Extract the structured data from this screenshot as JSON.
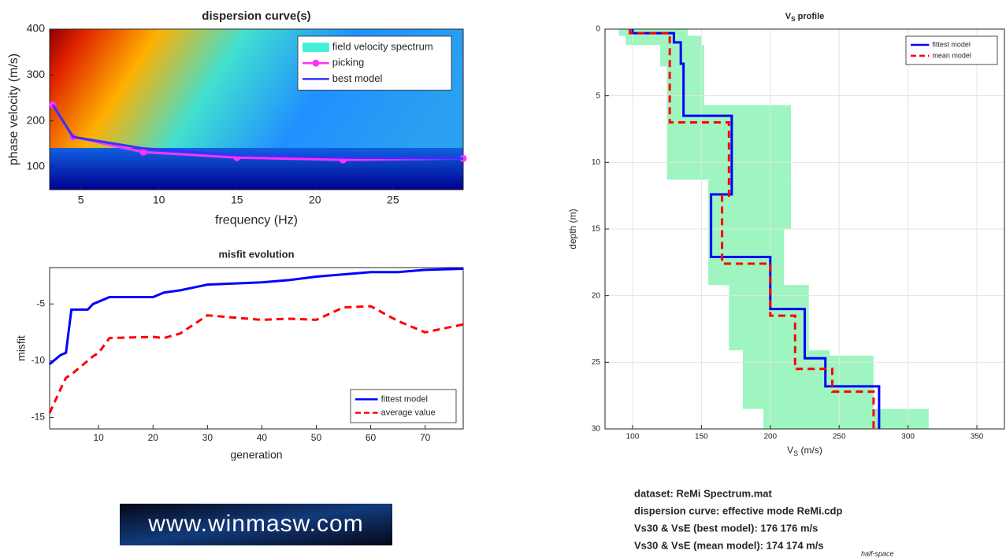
{
  "chart_data": [
    {
      "type": "line",
      "title": "dispersion curve(s)",
      "xlabel": "frequency (Hz)",
      "ylabel": "phase velocity (m/s)",
      "xlim": [
        3,
        29.5
      ],
      "xticks": [
        5,
        10,
        15,
        20,
        25
      ],
      "ylim": [
        50,
        400
      ],
      "yticks": [
        100,
        200,
        300,
        400
      ],
      "grid": false,
      "legend": "northeast",
      "background": {
        "name": "field velocity spectrum",
        "color": "#40f0d8"
      },
      "x": [
        3.2,
        4.5,
        9,
        15,
        21.8,
        29.5
      ],
      "series": [
        {
          "name": "picking",
          "color": "#ff33ff",
          "marker": "o",
          "values": [
            235,
            165,
            132,
            120,
            115,
            118
          ]
        },
        {
          "name": "best model",
          "color": "#3333ff",
          "values": [
            235,
            165,
            140,
            125,
            120,
            118
          ]
        }
      ]
    },
    {
      "type": "line",
      "title": "misfit evolution",
      "xlabel": "generation",
      "ylabel": "misfit",
      "xlim": [
        1,
        77
      ],
      "xticks": [
        10,
        20,
        30,
        40,
        50,
        60,
        70
      ],
      "ylim": [
        -16,
        -1.8
      ],
      "yticks": [
        -15,
        -10,
        -5
      ],
      "grid": false,
      "legend": "southeast",
      "x": [
        1,
        3,
        4,
        5,
        8,
        9,
        10,
        12,
        20,
        22,
        25,
        30,
        40,
        45,
        50,
        55,
        60,
        65,
        70,
        77
      ],
      "series": [
        {
          "name": "fittest model",
          "color": "#0000ff",
          "values": [
            -10.3,
            -9.5,
            -9.3,
            -5.5,
            -5.5,
            -5,
            -4.8,
            -4.4,
            -4.4,
            -4,
            -3.8,
            -3.3,
            -3.1,
            -2.9,
            -2.6,
            -2.4,
            -2.2,
            -2.2,
            -2,
            -1.9
          ]
        },
        {
          "name": "average value",
          "color": "#ff0000",
          "dash": "dashed",
          "values": [
            -14.6,
            -12.5,
            -11.5,
            -11.2,
            -10,
            -9.6,
            -9.3,
            -8,
            -7.9,
            -8,
            -7.6,
            -6,
            -6.4,
            -6.3,
            -6.4,
            -5.3,
            -5.2,
            -6.5,
            -7.5,
            -6.8
          ]
        }
      ]
    },
    {
      "type": "profile",
      "title": {
        "text": "V",
        "sub": "S",
        "rest": " profile"
      },
      "xlabel": {
        "text": "V",
        "sub": "S",
        "rest": " (m/s)"
      },
      "ylabel": "depth (m)",
      "xlim": [
        80,
        370
      ],
      "xticks": [
        100,
        150,
        200,
        250,
        300,
        350
      ],
      "ylim": [
        0,
        30
      ],
      "yticks": [
        0,
        5,
        10,
        15,
        20,
        25,
        30
      ],
      "y_reverse": true,
      "grid": true,
      "legend": "northeast",
      "band": {
        "color": "#9ef5c0",
        "depth": [
          0,
          0.5,
          1.2,
          2.8,
          5.7,
          11.3,
          15,
          19.2,
          24.1,
          24.5,
          28.5,
          30
        ],
        "min": [
          90,
          95,
          120,
          125,
          125,
          155,
          155,
          170,
          180,
          180,
          195
        ],
        "max": [
          140,
          150,
          152,
          152,
          215,
          215,
          210,
          228,
          243,
          275,
          315
        ]
      },
      "series": [
        {
          "name": "fittest model",
          "color": "#0000ff",
          "x": [
            100,
            100,
            130,
            130,
            135,
            135,
            137,
            137,
            172,
            172,
            157,
            157,
            200,
            200,
            225,
            225,
            240,
            240,
            279,
            279
          ],
          "values": [
            0,
            0.3,
            0.3,
            1,
            1,
            2.6,
            2.6,
            6.5,
            6.5,
            12.4,
            12.4,
            17.1,
            17.1,
            21,
            21,
            24.7,
            24.7,
            26.8,
            26.8,
            30
          ]
        },
        {
          "name": "mean model",
          "color": "#ff0000",
          "dash": "dashed",
          "x": [
            98,
            98,
            127,
            127,
            170,
            170,
            165,
            165,
            200,
            200,
            218,
            218,
            245,
            245,
            275,
            275
          ],
          "values": [
            0,
            0.3,
            0.3,
            7,
            7,
            12.5,
            12.5,
            17.6,
            17.6,
            21.5,
            21.5,
            25.5,
            25.5,
            27.2,
            27.2,
            30
          ]
        }
      ]
    }
  ],
  "notes": [
    "dataset: ReMi Spectrum.mat",
    "dispersion curve: effective mode ReMi.cdp",
    "Vs30 & VsE (best model): 176  176 m/s",
    "Vs30 & VsE (mean model): 174  174 m/s"
  ],
  "halfspace_label": "half-space",
  "logo": "www.winmasw.com"
}
